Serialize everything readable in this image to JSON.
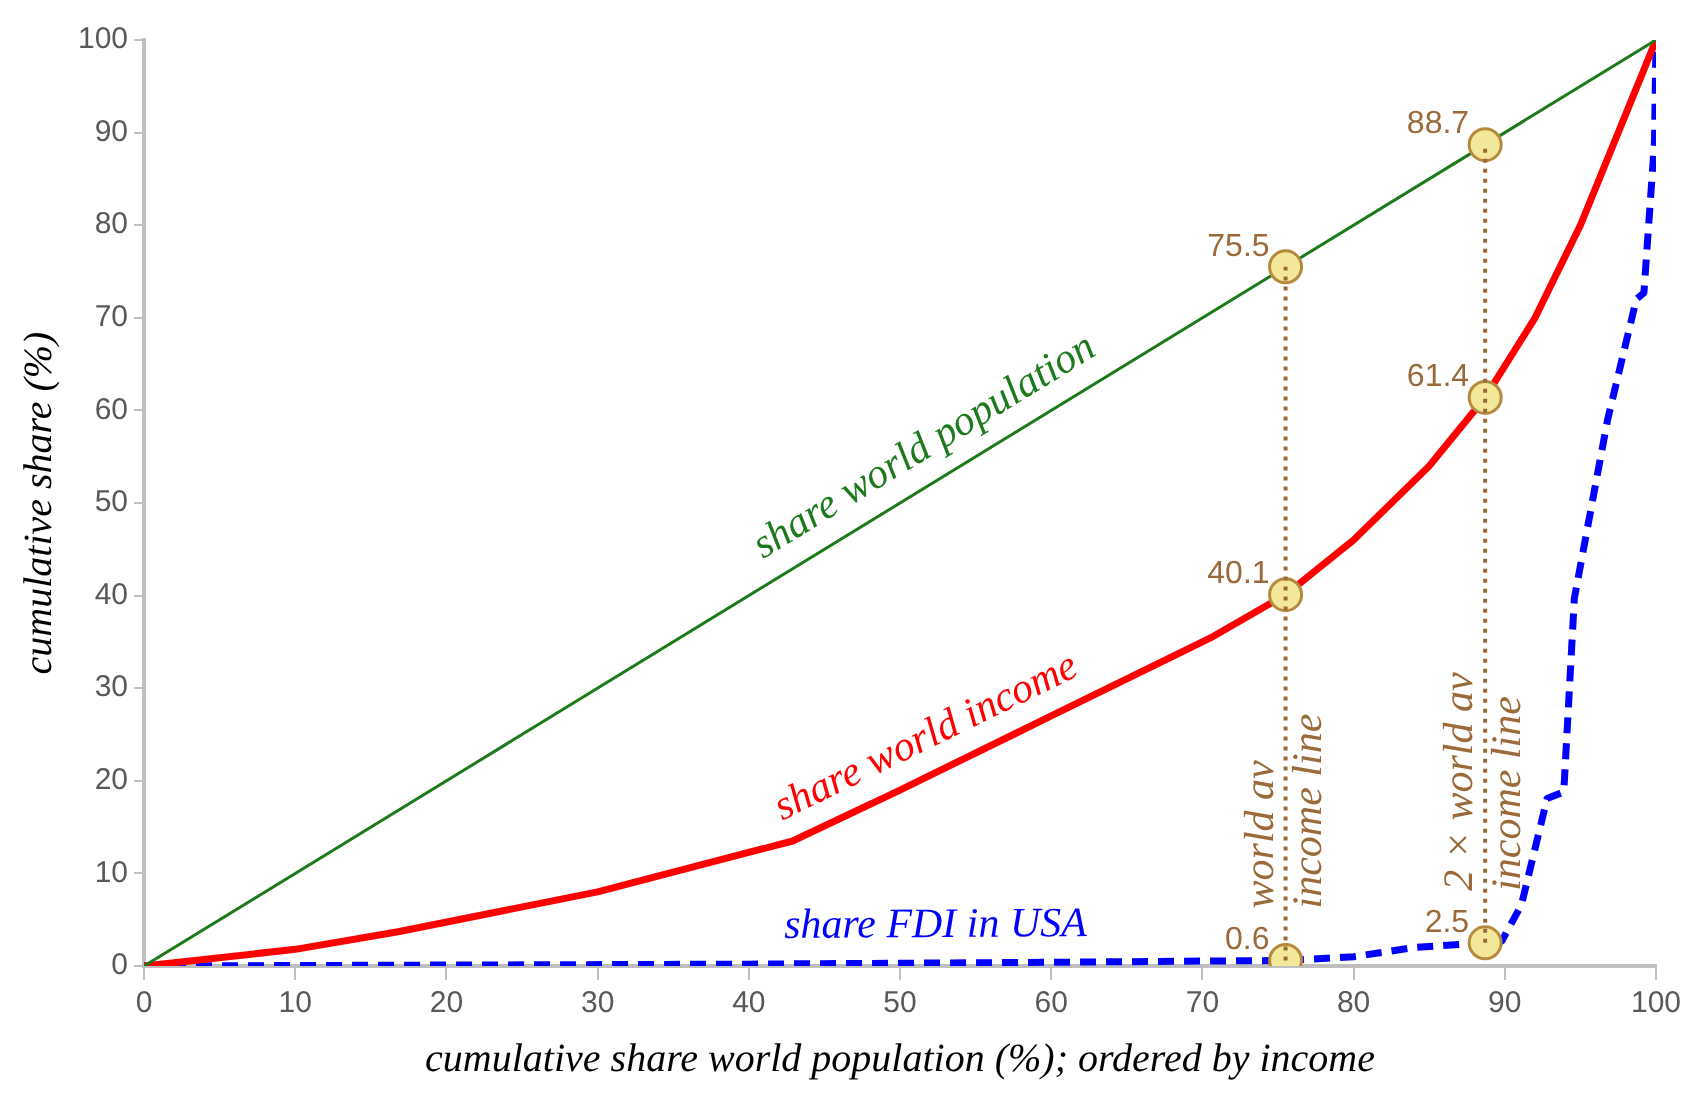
{
  "chart_data": {
    "type": "line",
    "xlabel": "cumulative share world population (%); ordered by income",
    "ylabel": "cumulative share (%)",
    "xlim": [
      0,
      100
    ],
    "ylim": [
      0,
      100
    ],
    "xticks": [
      0,
      10,
      20,
      30,
      40,
      50,
      60,
      70,
      80,
      90,
      100
    ],
    "yticks": [
      0,
      10,
      20,
      30,
      40,
      50,
      60,
      70,
      80,
      90,
      100
    ],
    "grid": false,
    "legend": false,
    "marker": "none",
    "series": [
      {
        "name": "share world population",
        "color": "#1c7a1c",
        "x": [
          0,
          100
        ],
        "values": [
          0,
          100
        ],
        "line_style": "solid"
      },
      {
        "name": "share world income",
        "color": "#ff0000",
        "x": [
          0,
          10,
          16.8,
          30,
          42.9,
          50,
          60,
          70.5,
          75.5,
          80,
          85,
          88.7,
          92,
          95,
          98,
          100
        ],
        "values": [
          0,
          1.8,
          3.7,
          8,
          13.5,
          19,
          27,
          35.4,
          40.1,
          46,
          54,
          61.4,
          70,
          80,
          92,
          100
        ],
        "line_style": "solid"
      },
      {
        "name": "share FDI in USA",
        "color": "#0000ff",
        "x": [
          0,
          20,
          40,
          60,
          75.5,
          80,
          84,
          88.7,
          89.8,
          91.1,
          92.8,
          93.9,
          94.6,
          96.8,
          98.7,
          99.2,
          99.9,
          100
        ],
        "values": [
          0,
          0.1,
          0.2,
          0.4,
          0.6,
          1,
          2,
          2.5,
          2.7,
          6.6,
          18.1,
          18.8,
          39.7,
          59,
          72,
          72.7,
          89,
          100
        ],
        "line_style": "dashed"
      },
      {
        "type": "scatter",
        "color": "#f3e89a",
        "marker": "circle",
        "x": [
          75.5,
          75.5,
          75.5,
          88.7,
          88.7,
          88.7
        ],
        "values": [
          75.5,
          40.1,
          0.6,
          88.7,
          61.4,
          2.5
        ],
        "value_labels": [
          "75.5",
          "40.1",
          "0.6",
          "88.7",
          "61.4",
          "2.5"
        ]
      }
    ],
    "ref_lines": [
      {
        "axis": "x",
        "value": 75.5,
        "label": "world av income line",
        "color": "#9b6a3a",
        "line_style": "dotted"
      },
      {
        "axis": "x",
        "value": 88.7,
        "label": "2 × world av income line",
        "color": "#9b6a3a",
        "line_style": "dotted"
      }
    ]
  }
}
